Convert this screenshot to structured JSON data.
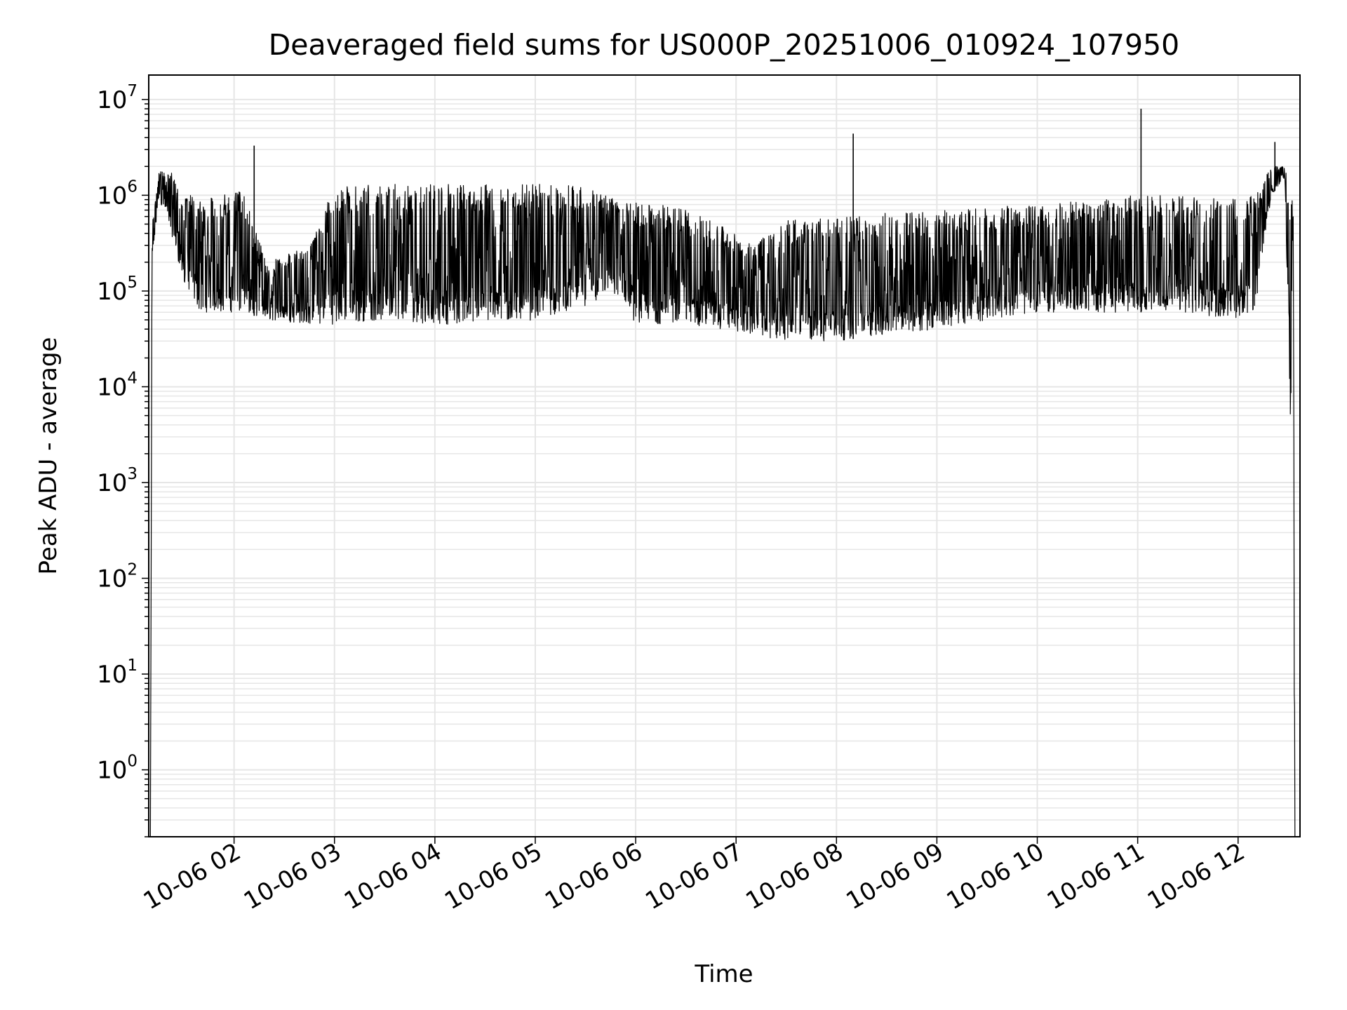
{
  "chart_data": {
    "type": "line",
    "title": "Deaveraged field sums for US000P_20251006_010924_107950",
    "xlabel": "Time",
    "ylabel": "Peak ADU - average",
    "yscale": "log",
    "ylim": [
      0.2,
      18000000
    ],
    "xlim": [
      "2025-10-06 01:09",
      "2025-10-06 12:37"
    ],
    "grid": true,
    "line_color": "#000000",
    "grid_color": "#e6e6e6",
    "x_ticks": [
      {
        "value": "2025-10-06 02:00",
        "label": "10-06 02"
      },
      {
        "value": "2025-10-06 03:00",
        "label": "10-06 03"
      },
      {
        "value": "2025-10-06 04:00",
        "label": "10-06 04"
      },
      {
        "value": "2025-10-06 05:00",
        "label": "10-06 05"
      },
      {
        "value": "2025-10-06 06:00",
        "label": "10-06 06"
      },
      {
        "value": "2025-10-06 07:00",
        "label": "10-06 07"
      },
      {
        "value": "2025-10-06 08:00",
        "label": "10-06 08"
      },
      {
        "value": "2025-10-06 09:00",
        "label": "10-06 09"
      },
      {
        "value": "2025-10-06 10:00",
        "label": "10-06 10"
      },
      {
        "value": "2025-10-06 11:00",
        "label": "10-06 11"
      },
      {
        "value": "2025-10-06 12:00",
        "label": "10-06 12"
      }
    ],
    "y_ticks": [
      {
        "value": 1,
        "base": "10",
        "exp": "0"
      },
      {
        "value": 10,
        "base": "10",
        "exp": "1"
      },
      {
        "value": 100,
        "base": "10",
        "exp": "2"
      },
      {
        "value": 1000,
        "base": "10",
        "exp": "3"
      },
      {
        "value": 10000,
        "base": "10",
        "exp": "4"
      },
      {
        "value": 100000,
        "base": "10",
        "exp": "5"
      },
      {
        "value": 1000000,
        "base": "10",
        "exp": "6"
      },
      {
        "value": 10000000,
        "base": "10",
        "exp": "7"
      }
    ],
    "series": [
      {
        "envelope": [
          {
            "t": "2025-10-06 01:10",
            "low": 0.2,
            "high": 0.2
          },
          {
            "t": "2025-10-06 01:11",
            "low": 200000,
            "high": 500000
          },
          {
            "t": "2025-10-06 01:15",
            "low": 900000,
            "high": 1700000
          },
          {
            "t": "2025-10-06 01:20",
            "low": 600000,
            "high": 2000000
          },
          {
            "t": "2025-10-06 01:30",
            "low": 120000,
            "high": 1100000
          },
          {
            "t": "2025-10-06 01:40",
            "low": 60000,
            "high": 900000
          },
          {
            "t": "2025-10-06 01:50",
            "low": 60000,
            "high": 1000000
          },
          {
            "t": "2025-10-06 02:05",
            "low": 60000,
            "high": 1100000
          },
          {
            "t": "2025-10-06 02:20",
            "low": 50000,
            "high": 200000
          },
          {
            "t": "2025-10-06 02:45",
            "low": 45000,
            "high": 300000
          },
          {
            "t": "2025-10-06 03:00",
            "low": 45000,
            "high": 1300000
          },
          {
            "t": "2025-10-06 03:30",
            "low": 50000,
            "high": 1300000
          },
          {
            "t": "2025-10-06 04:00",
            "low": 45000,
            "high": 1300000
          },
          {
            "t": "2025-10-06 04:30",
            "low": 45000,
            "high": 1300000
          },
          {
            "t": "2025-10-06 05:00",
            "low": 50000,
            "high": 1300000
          },
          {
            "t": "2025-10-06 05:30",
            "low": 70000,
            "high": 1300000
          },
          {
            "t": "2025-10-06 05:50",
            "low": 90000,
            "high": 900000
          },
          {
            "t": "2025-10-06 06:00",
            "low": 45000,
            "high": 900000
          },
          {
            "t": "2025-10-06 06:30",
            "low": 45000,
            "high": 700000
          },
          {
            "t": "2025-10-06 06:50",
            "low": 40000,
            "high": 500000
          },
          {
            "t": "2025-10-06 07:10",
            "low": 35000,
            "high": 300000
          },
          {
            "t": "2025-10-06 07:30",
            "low": 30000,
            "high": 550000
          },
          {
            "t": "2025-10-06 08:00",
            "low": 30000,
            "high": 600000
          },
          {
            "t": "2025-10-06 08:30",
            "low": 35000,
            "high": 650000
          },
          {
            "t": "2025-10-06 09:00",
            "low": 40000,
            "high": 700000
          },
          {
            "t": "2025-10-06 09:30",
            "low": 50000,
            "high": 750000
          },
          {
            "t": "2025-10-06 10:00",
            "low": 60000,
            "high": 800000
          },
          {
            "t": "2025-10-06 10:30",
            "low": 60000,
            "high": 900000
          },
          {
            "t": "2025-10-06 11:00",
            "low": 60000,
            "high": 1000000
          },
          {
            "t": "2025-10-06 11:30",
            "low": 60000,
            "high": 1000000
          },
          {
            "t": "2025-10-06 11:55",
            "low": 50000,
            "high": 900000
          },
          {
            "t": "2025-10-06 12:10",
            "low": 60000,
            "high": 1000000
          },
          {
            "t": "2025-10-06 12:20",
            "low": 1000000,
            "high": 2000000
          },
          {
            "t": "2025-10-06 12:28",
            "low": 1500000,
            "high": 2000000
          },
          {
            "t": "2025-10-06 12:33",
            "low": 200,
            "high": 1000000
          },
          {
            "t": "2025-10-06 12:34",
            "low": 0.2,
            "high": 0.2
          }
        ],
        "spikes": [
          {
            "t": "2025-10-06 02:12",
            "value": 3300000
          },
          {
            "t": "2025-10-06 08:10",
            "value": 4400000
          },
          {
            "t": "2025-10-06 11:02",
            "value": 8000000
          },
          {
            "t": "2025-10-06 12:22",
            "value": 3600000
          }
        ]
      }
    ]
  }
}
